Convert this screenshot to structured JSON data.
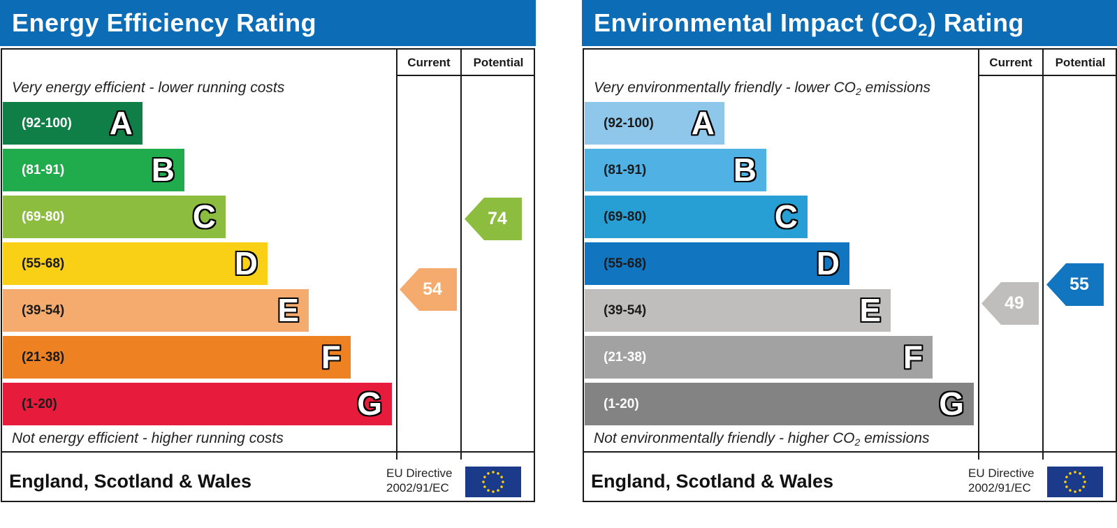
{
  "charts": [
    {
      "title_main": "Energy Efficiency Rating",
      "title_sub": "",
      "title_end": "",
      "col_current": "Current",
      "col_potential": "Potential",
      "top_note_main": "Very energy efficient - lower running costs",
      "top_note_sub": "",
      "top_note_end": "",
      "bottom_note_main": "Not energy efficient - higher running costs",
      "bottom_note_sub": "",
      "bottom_note_end": "",
      "footer": "England, Scotland & Wales",
      "eu_line1": "EU Directive",
      "eu_line2": "2002/91/EC"
    },
    {
      "title_main": "Environmental Impact (CO",
      "title_sub": "2",
      "title_end": ") Rating",
      "col_current": "Current",
      "col_potential": "Potential",
      "top_note_main": "Very environmentally friendly - lower CO",
      "top_note_sub": "2",
      "top_note_end": " emissions",
      "bottom_note_main": "Not environmentally friendly - higher CO",
      "bottom_note_sub": "2",
      "bottom_note_end": " emissions",
      "footer": "England, Scotland & Wales",
      "eu_line1": "EU Directive",
      "eu_line2": "2002/91/EC"
    }
  ],
  "chart_data": [
    {
      "type": "bar",
      "title": "Energy Efficiency Rating",
      "bands": [
        {
          "range": "(92-100)",
          "letter": "A",
          "min": 92,
          "max": 100,
          "color": "#0f7f47",
          "text_dark": false
        },
        {
          "range": "(81-91)",
          "letter": "B",
          "min": 81,
          "max": 91,
          "color": "#20ab4d",
          "text_dark": false
        },
        {
          "range": "(69-80)",
          "letter": "C",
          "min": 69,
          "max": 80,
          "color": "#8cbd3f",
          "text_dark": false
        },
        {
          "range": "(55-68)",
          "letter": "D",
          "min": 55,
          "max": 68,
          "color": "#fad017",
          "text_dark": true
        },
        {
          "range": "(39-54)",
          "letter": "E",
          "min": 39,
          "max": 54,
          "color": "#f6ab6e",
          "text_dark": true
        },
        {
          "range": "(21-38)",
          "letter": "F",
          "min": 21,
          "max": 38,
          "color": "#ee8223",
          "text_dark": true
        },
        {
          "range": "(1-20)",
          "letter": "G",
          "min": 1,
          "max": 20,
          "color": "#e71c3c",
          "text_dark": true
        }
      ],
      "current": {
        "value": 54,
        "band": "E",
        "color": "#f6ab6e"
      },
      "potential": {
        "value": 74,
        "band": "C",
        "color": "#8cbd3f"
      }
    },
    {
      "type": "bar",
      "title": "Environmental Impact (CO2) Rating",
      "bands": [
        {
          "range": "(92-100)",
          "letter": "A",
          "min": 92,
          "max": 100,
          "color": "#8fc7ea",
          "text_dark": true
        },
        {
          "range": "(81-91)",
          "letter": "B",
          "min": 81,
          "max": 91,
          "color": "#4fb1e4",
          "text_dark": true
        },
        {
          "range": "(69-80)",
          "letter": "C",
          "min": 69,
          "max": 80,
          "color": "#279fd4",
          "text_dark": true
        },
        {
          "range": "(55-68)",
          "letter": "D",
          "min": 55,
          "max": 68,
          "color": "#1275bf",
          "text_dark": true
        },
        {
          "range": "(39-54)",
          "letter": "E",
          "min": 39,
          "max": 54,
          "color": "#bfbebd",
          "text_dark": true
        },
        {
          "range": "(21-38)",
          "letter": "F",
          "min": 21,
          "max": 38,
          "color": "#a3a2a2",
          "text_dark": false
        },
        {
          "range": "(1-20)",
          "letter": "G",
          "min": 1,
          "max": 20,
          "color": "#838383",
          "text_dark": false
        }
      ],
      "current": {
        "value": 49,
        "band": "E",
        "color": "#bfbebd"
      },
      "potential": {
        "value": 55,
        "band": "D",
        "color": "#1275bf"
      }
    }
  ]
}
